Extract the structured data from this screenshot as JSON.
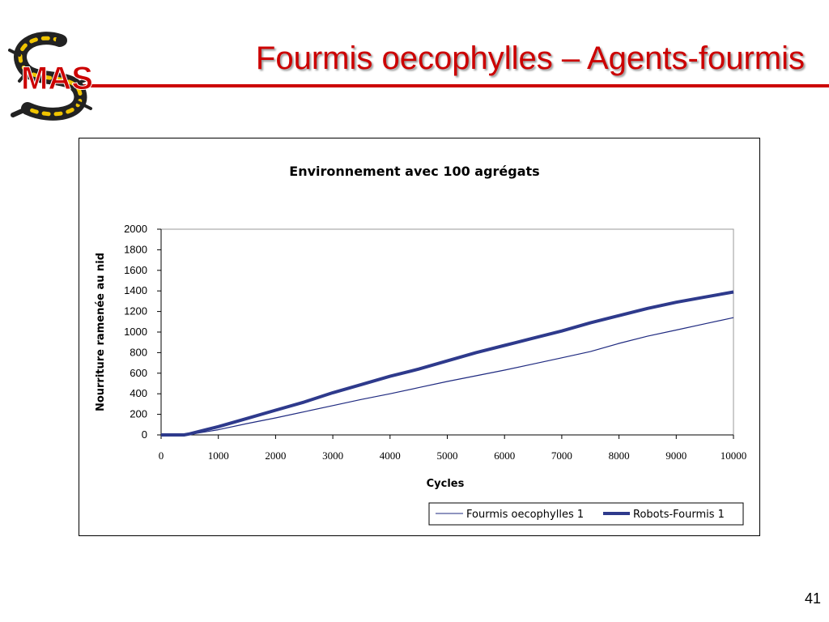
{
  "slide": {
    "title": "Fourmis oecophylles – Agents-fourmis",
    "page_number": "41",
    "logo_text": "MAS",
    "accent_color": "#cc0000"
  },
  "chart_data": {
    "type": "line",
    "title": "Environnement avec 100 agrégats",
    "xlabel": "Cycles",
    "ylabel": "Nourriture ramenée au nid",
    "xlim": [
      0,
      10000
    ],
    "ylim": [
      0,
      2000
    ],
    "x_ticks": [
      "0",
      "1000",
      "2000",
      "3000",
      "4000",
      "5000",
      "6000",
      "7000",
      "8000",
      "9000",
      "10000"
    ],
    "y_ticks": [
      "0",
      "200",
      "400",
      "600",
      "800",
      "1000",
      "1200",
      "1400",
      "1600",
      "1800",
      "2000"
    ],
    "grid": false,
    "legend_position": "bottom-right",
    "x": [
      0,
      400,
      500,
      1000,
      1500,
      2000,
      2500,
      3000,
      3500,
      4000,
      4500,
      5000,
      5500,
      6000,
      6500,
      7000,
      7500,
      8000,
      8500,
      9000,
      9500,
      10000
    ],
    "series": [
      {
        "name": "Fourmis oecophylles 1",
        "color": "#1f2a80",
        "style": "thin",
        "values": [
          0,
          0,
          5,
          50,
          110,
          165,
          225,
          285,
          345,
          400,
          460,
          520,
          575,
          630,
          690,
          750,
          810,
          890,
          960,
          1020,
          1080,
          1140
        ]
      },
      {
        "name": "Robots-Fourmis 1",
        "color": "#2e3a8c",
        "style": "thick",
        "values": [
          0,
          0,
          10,
          80,
          160,
          240,
          320,
          410,
          490,
          570,
          640,
          720,
          800,
          870,
          940,
          1010,
          1090,
          1160,
          1230,
          1290,
          1340,
          1390
        ]
      }
    ]
  }
}
